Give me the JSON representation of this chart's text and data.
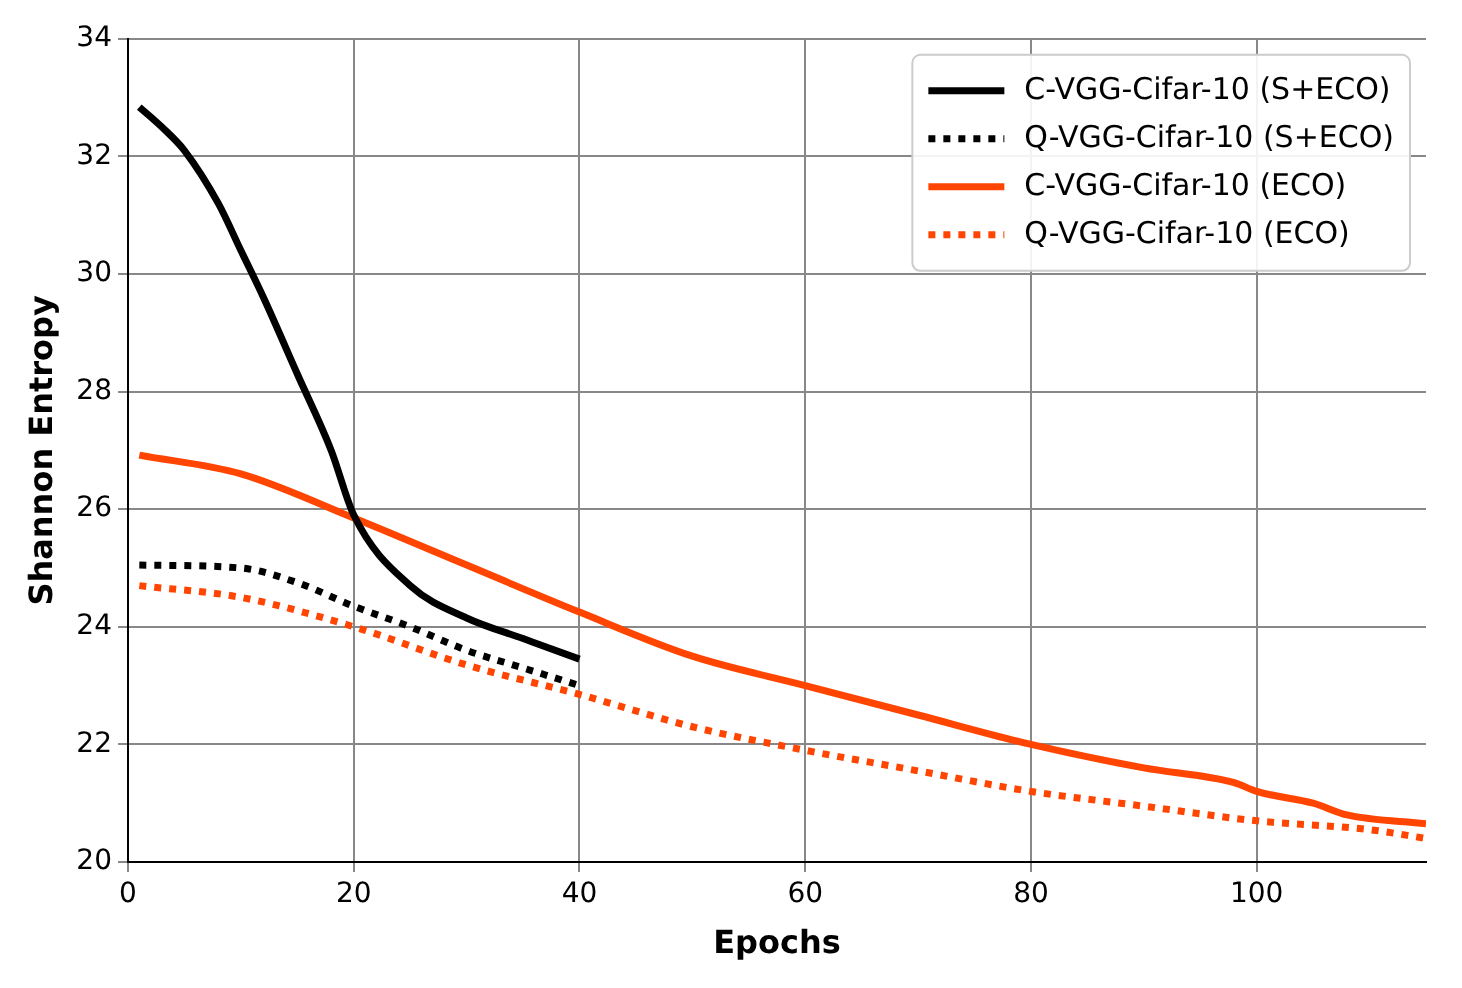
{
  "chart_data": {
    "type": "line",
    "xlabel": "Epochs",
    "ylabel": "Shannon Entropy",
    "xlim": [
      0,
      115
    ],
    "xticks": [
      0,
      20,
      40,
      60,
      80,
      100
    ],
    "ylim": [
      20,
      34
    ],
    "yticks": [
      20,
      22,
      24,
      26,
      28,
      30,
      32,
      34
    ],
    "grid": true,
    "legend": "top right",
    "marker": "none",
    "series": [
      {
        "name": "C-VGG-Cifar-10 (S+ECO)",
        "color": "#000000",
        "line_style": "solid",
        "x": [
          1,
          3,
          5,
          8,
          10,
          12,
          15,
          18,
          20,
          25,
          30,
          35,
          40
        ],
        "values": [
          32.84,
          32.5,
          32.1,
          31.2,
          30.4,
          29.6,
          28.3,
          27.0,
          25.9,
          24.7,
          24.15,
          23.8,
          23.45
        ]
      },
      {
        "name": "Q-VGG-Cifar-10 (S+ECO)",
        "color": "#000000",
        "line_style": "dotted",
        "x": [
          1,
          10,
          15,
          20,
          25,
          30,
          35,
          40
        ],
        "values": [
          25.05,
          25.0,
          24.75,
          24.35,
          24.0,
          23.6,
          23.3,
          23.0
        ]
      },
      {
        "name": "C-VGG-Cifar-10 (ECO)",
        "color": "#ff4500",
        "line_style": "solid",
        "x": [
          1,
          10,
          20,
          30,
          40,
          50,
          60,
          70,
          80,
          90,
          98,
          100,
          105,
          108,
          115
        ],
        "values": [
          26.92,
          26.6,
          25.85,
          25.05,
          24.25,
          23.5,
          23.0,
          22.5,
          22.0,
          21.6,
          21.35,
          21.2,
          21.0,
          20.8,
          20.65
        ]
      },
      {
        "name": "Q-VGG-Cifar-10 (ECO)",
        "color": "#ff4500",
        "line_style": "dotted",
        "x": [
          1,
          10,
          20,
          30,
          40,
          50,
          60,
          70,
          80,
          90,
          100,
          110,
          115
        ],
        "values": [
          24.7,
          24.5,
          24.0,
          23.35,
          22.85,
          22.3,
          21.9,
          21.55,
          21.2,
          20.95,
          20.7,
          20.55,
          20.4
        ]
      }
    ]
  }
}
